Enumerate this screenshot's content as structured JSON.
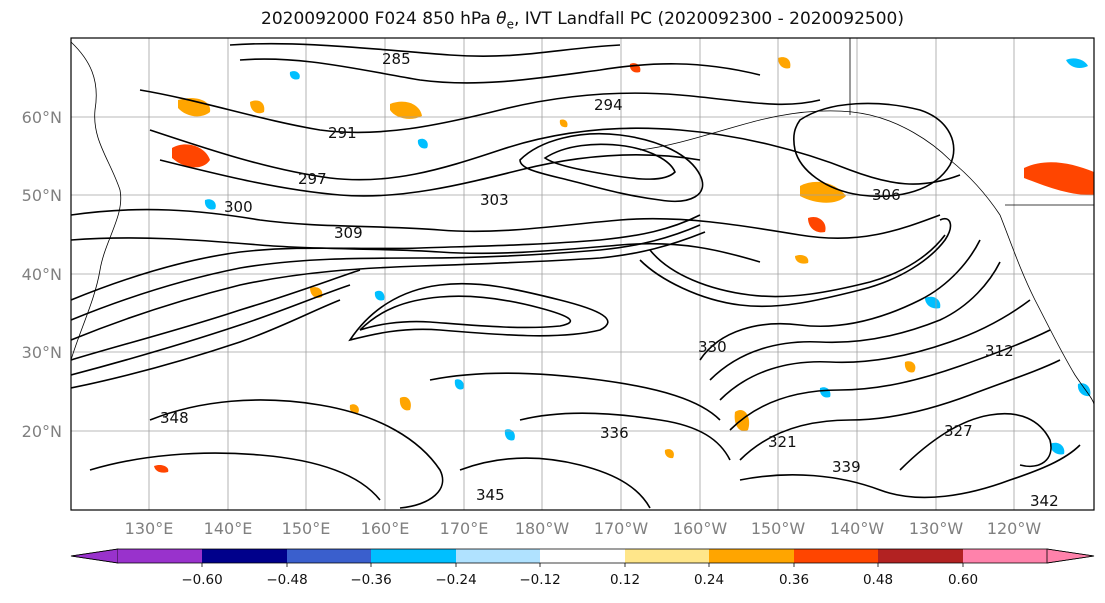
{
  "title": {
    "prefix": "2020092000 F024 850 hPa ",
    "theta": "θ",
    "theta_sub": "e",
    "suffix": ", IVT Landfall PC (2020092300 - 2020092500)"
  },
  "map": {
    "lat_labels": [
      "60°N",
      "50°N",
      "40°N",
      "30°N",
      "20°N"
    ],
    "lon_labels": [
      "130°E",
      "140°E",
      "150°E",
      "160°E",
      "170°E",
      "180°W",
      "170°W",
      "160°W",
      "150°W",
      "140°W",
      "130°W",
      "120°W"
    ],
    "contour_labels": [
      "285",
      "291",
      "294",
      "297",
      "300",
      "303",
      "306",
      "309",
      "312",
      "321",
      "327",
      "330",
      "336",
      "339",
      "342",
      "345",
      "348"
    ],
    "grid": true,
    "coastlines": true
  },
  "colorbar": {
    "ticks": [
      "−0.60",
      "−0.48",
      "−0.36",
      "−0.24",
      "−0.12",
      "0.12",
      "0.24",
      "0.36",
      "0.48",
      "0.60"
    ],
    "colors": [
      "#9932cc",
      "#00008b",
      "#3a5fcd",
      "#00bfff",
      "#b0e2ff",
      "#ffffff",
      "#ffe68a",
      "#ffa500",
      "#ff4500",
      "#b22222",
      "#ff82ab"
    ],
    "extend": "both"
  },
  "colors": {
    "contour": "#000000",
    "grid": "#a0a0a0",
    "tick_label": "#808080"
  }
}
